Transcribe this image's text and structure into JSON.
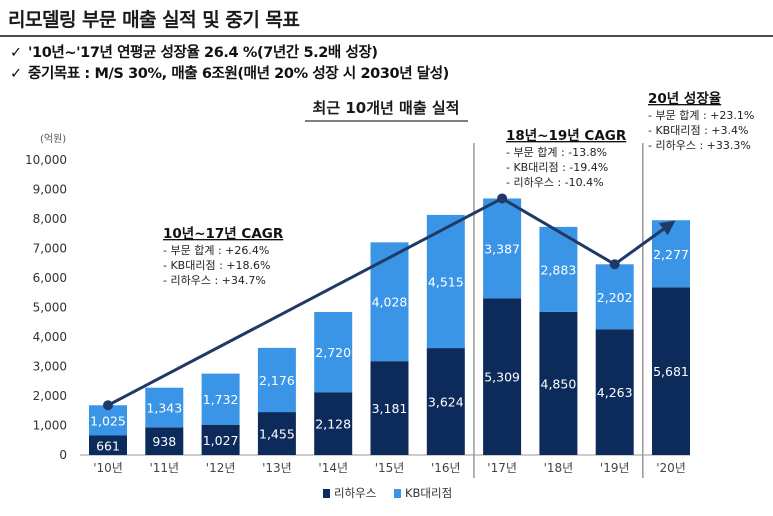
{
  "page_title": "리모델링 부문 매출 실적 및 중기 목표",
  "bullets": [
    "'10년~'17년 연평균 성장율 26.4 %(7년간 5.2배 성장)",
    "중기목표 : M/S 30%, 매출 6조원(매년 20% 성장 시 2030년 달성)"
  ],
  "icons": {
    "bullet": "check-icon"
  },
  "colors": {
    "dark": "#0d2b5a",
    "light": "#3a95e6",
    "arrow": "#1f3a66",
    "separator": "#7f7f7f"
  },
  "chart_data": {
    "type": "bar",
    "stacked": true,
    "title": "최근 10개년 매출 실적",
    "unit_label": "(억원)",
    "categories": [
      "'10년",
      "'11년",
      "'12년",
      "'13년",
      "'14년",
      "'15년",
      "'16년",
      "'17년",
      "'18년",
      "'19년",
      "'20년"
    ],
    "series": [
      {
        "name": "리하우스",
        "values": [
          661,
          938,
          1027,
          1455,
          2128,
          3181,
          3624,
          5309,
          4850,
          4263,
          5681
        ]
      },
      {
        "name": "KB대리점",
        "values": [
          1025,
          1343,
          1732,
          2176,
          2720,
          4028,
          4515,
          3387,
          2883,
          2202,
          2277
        ]
      }
    ],
    "ylim": [
      0,
      10000
    ],
    "yticks": [
      "0",
      "1,000",
      "2,000",
      "3,000",
      "4,000",
      "5,000",
      "6,000",
      "7,000",
      "8,000",
      "9,000",
      "10,000"
    ],
    "legend_position": "bottom",
    "grid": false,
    "annotations": [
      {
        "title": "10년~17년 CAGR",
        "lines": [
          "- 부문 합계 : +26.4%",
          "- KB대리점 : +18.6%",
          "- 리하우스 : +34.7%"
        ]
      },
      {
        "title": "18년~19년 CAGR",
        "lines": [
          "- 부문 합계 : -13.8%",
          "- KB대리점 : -19.4%",
          "- 리하우스 : -10.4%"
        ]
      },
      {
        "title": "20년 성장율",
        "lines": [
          "- 부문 합계 : +23.1%",
          "- KB대리점 : +3.4%",
          "- 리하우스 : +33.3%"
        ]
      }
    ]
  }
}
